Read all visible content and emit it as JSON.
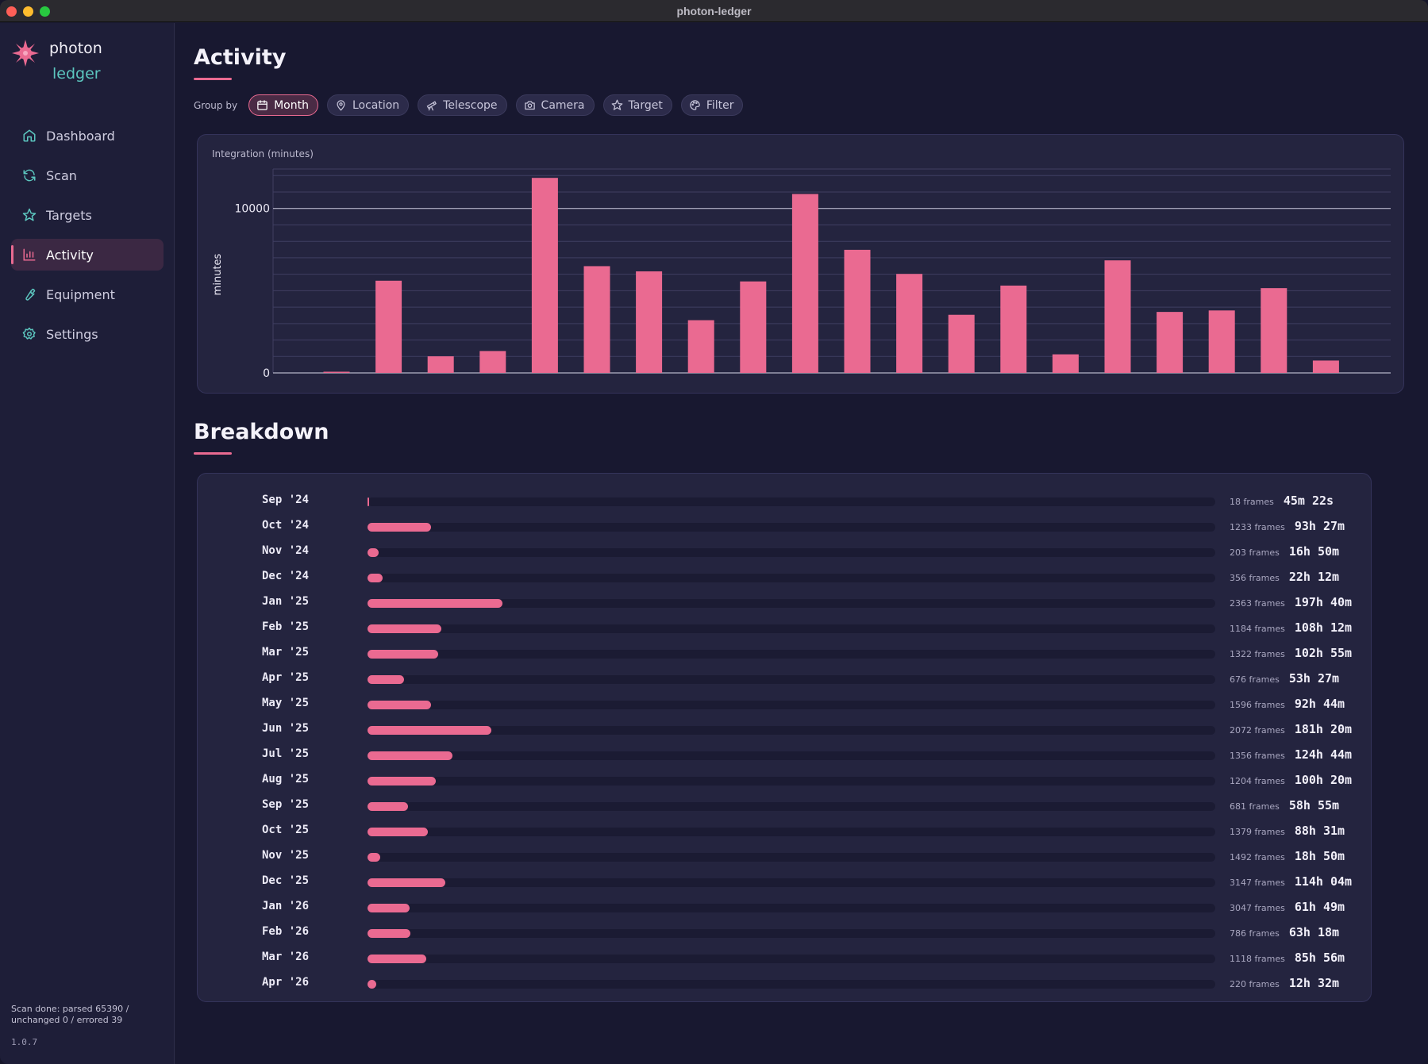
{
  "window": {
    "title": "photon-ledger"
  },
  "brand": {
    "line1": "photon",
    "line2": "ledger"
  },
  "nav": [
    {
      "label": "Dashboard",
      "icon": "home-icon",
      "active": false
    },
    {
      "label": "Scan",
      "icon": "refresh-icon",
      "active": false
    },
    {
      "label": "Targets",
      "icon": "star-icon",
      "active": false
    },
    {
      "label": "Activity",
      "icon": "bar-chart-icon",
      "active": true
    },
    {
      "label": "Equipment",
      "icon": "wrench-icon",
      "active": false
    },
    {
      "label": "Settings",
      "icon": "gear-icon",
      "active": false
    }
  ],
  "status": {
    "scan": "Scan done: parsed 65390 / unchanged 0 / errored 39",
    "version": "1.0.7"
  },
  "page": {
    "title": "Activity",
    "breakdown_title": "Breakdown"
  },
  "groupby": {
    "label": "Group by",
    "options": [
      {
        "label": "Month",
        "icon": "calendar-icon",
        "active": true
      },
      {
        "label": "Location",
        "icon": "map-pin-icon",
        "active": false
      },
      {
        "label": "Telescope",
        "icon": "telescope-icon",
        "active": false
      },
      {
        "label": "Camera",
        "icon": "camera-icon",
        "active": false
      },
      {
        "label": "Target",
        "icon": "star-icon",
        "active": false
      },
      {
        "label": "Filter",
        "icon": "palette-icon",
        "active": false
      }
    ]
  },
  "colors": {
    "accent": "#ea6a91",
    "teal": "#5cc6bf",
    "bg": "#181830",
    "card": "#24243f"
  },
  "chart_data": {
    "type": "bar",
    "title": "Integration (minutes)",
    "ylabel": "minutes",
    "xlabel": "",
    "ylim": [
      0,
      12400
    ],
    "yticks": [
      0,
      10000
    ],
    "grid": true,
    "categories": [
      "Sep '24",
      "Oct '24",
      "Nov '24",
      "Dec '24",
      "Jan '25",
      "Feb '25",
      "Mar '25",
      "Apr '25",
      "May '25",
      "Jun '25",
      "Jul '25",
      "Aug '25",
      "Sep '25",
      "Oct '25",
      "Nov '25",
      "Dec '25",
      "Jan '26",
      "Feb '26",
      "Mar '26",
      "Apr '26"
    ],
    "values": [
      45,
      5607,
      1010,
      1332,
      11860,
      6492,
      6175,
      3207,
      5564,
      10880,
      7484,
      6020,
      3535,
      5311,
      1130,
      6844,
      3709,
      3798,
      5156,
      752
    ]
  },
  "breakdown": [
    {
      "period": "Sep '24",
      "frames": "18 frames",
      "duration": "45m 22s",
      "minutes": 45
    },
    {
      "period": "Oct '24",
      "frames": "1233 frames",
      "duration": "93h 27m",
      "minutes": 5607
    },
    {
      "period": "Nov '24",
      "frames": "203 frames",
      "duration": "16h 50m",
      "minutes": 1010
    },
    {
      "period": "Dec '24",
      "frames": "356 frames",
      "duration": "22h 12m",
      "minutes": 1332
    },
    {
      "period": "Jan '25",
      "frames": "2363 frames",
      "duration": "197h 40m",
      "minutes": 11860
    },
    {
      "period": "Feb '25",
      "frames": "1184 frames",
      "duration": "108h 12m",
      "minutes": 6492
    },
    {
      "period": "Mar '25",
      "frames": "1322 frames",
      "duration": "102h 55m",
      "minutes": 6175
    },
    {
      "period": "Apr '25",
      "frames": "676 frames",
      "duration": "53h 27m",
      "minutes": 3207
    },
    {
      "period": "May '25",
      "frames": "1596 frames",
      "duration": "92h 44m",
      "minutes": 5564
    },
    {
      "period": "Jun '25",
      "frames": "2072 frames",
      "duration": "181h 20m",
      "minutes": 10880
    },
    {
      "period": "Jul '25",
      "frames": "1356 frames",
      "duration": "124h 44m",
      "minutes": 7484
    },
    {
      "period": "Aug '25",
      "frames": "1204 frames",
      "duration": "100h 20m",
      "minutes": 6020
    },
    {
      "period": "Sep '25",
      "frames": "681 frames",
      "duration": "58h 55m",
      "minutes": 3535
    },
    {
      "period": "Oct '25",
      "frames": "1379 frames",
      "duration": "88h 31m",
      "minutes": 5311
    },
    {
      "period": "Nov '25",
      "frames": "1492 frames",
      "duration": "18h 50m",
      "minutes": 1130
    },
    {
      "period": "Dec '25",
      "frames": "3147 frames",
      "duration": "114h 04m",
      "minutes": 6844
    },
    {
      "period": "Jan '26",
      "frames": "3047 frames",
      "duration": "61h 49m",
      "minutes": 3709
    },
    {
      "period": "Feb '26",
      "frames": "786 frames",
      "duration": "63h 18m",
      "minutes": 3798
    },
    {
      "period": "Mar '26",
      "frames": "1118 frames",
      "duration": "85h 56m",
      "minutes": 5156
    },
    {
      "period": "Apr '26",
      "frames": "220 frames",
      "duration": "12h 32m",
      "minutes": 752
    }
  ]
}
